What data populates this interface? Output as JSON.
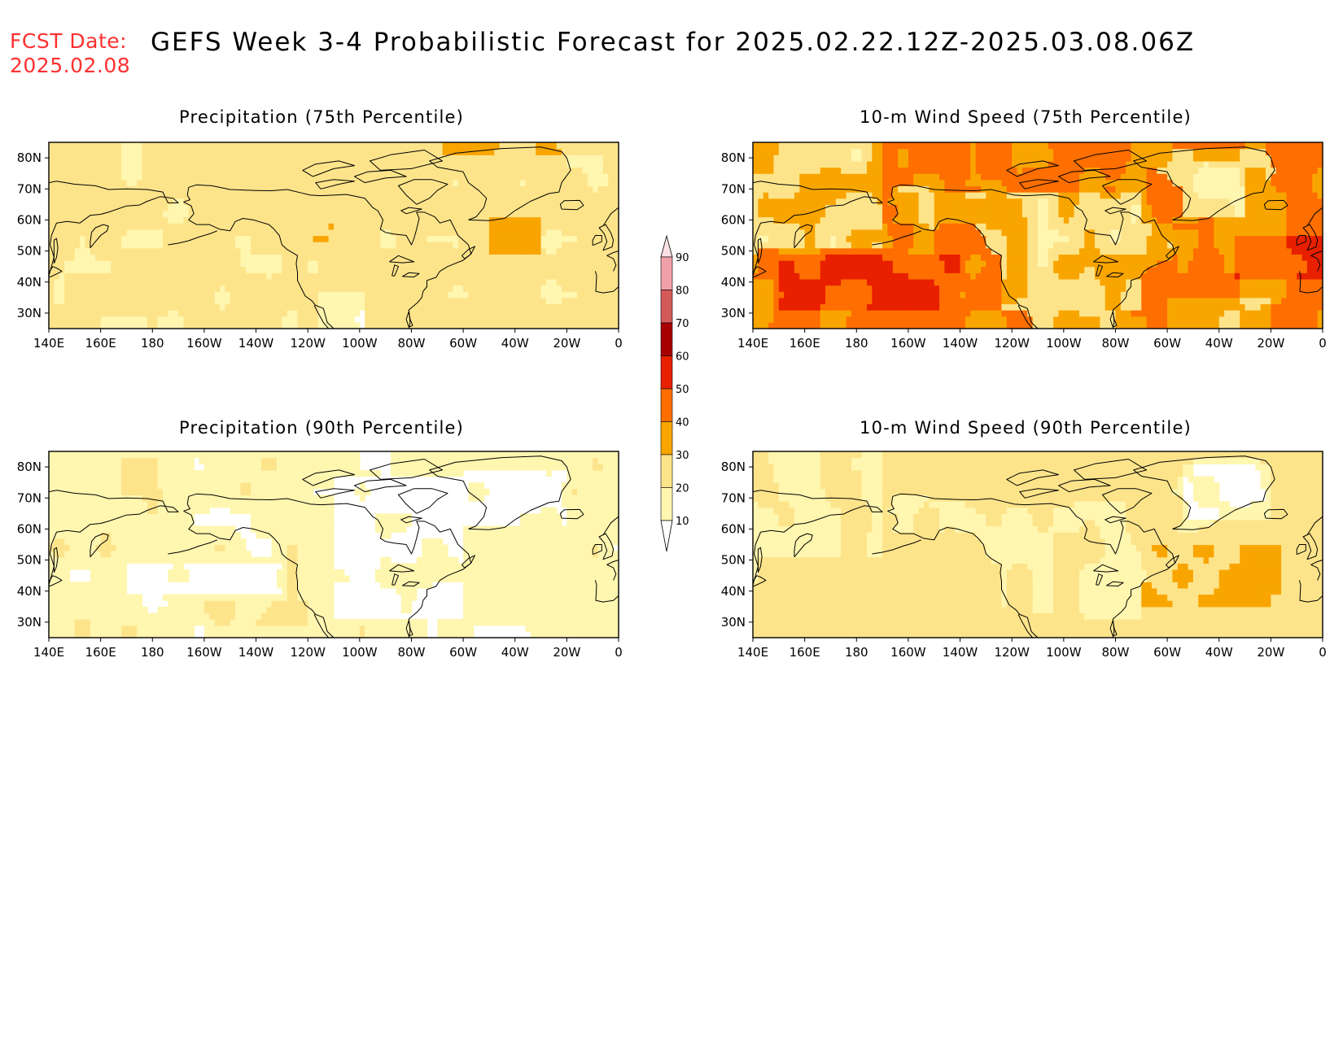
{
  "header": {
    "fcst_label": "FCST Date:",
    "fcst_date": "2025.02.08",
    "title": "GEFS Week 3-4 Probabilistic Forecast for 2025.02.22.12Z-2025.03.08.06Z"
  },
  "x_ticks": [
    "140E",
    "160E",
    "180",
    "160W",
    "140W",
    "120W",
    "100W",
    "80W",
    "60W",
    "40W",
    "20W",
    "0"
  ],
  "y_ticks": [
    "80N",
    "70N",
    "60N",
    "50N",
    "40N",
    "30N"
  ],
  "colorbar": {
    "levels": [
      "10",
      "20",
      "30",
      "40",
      "50",
      "60",
      "70",
      "80",
      "90"
    ],
    "colors": [
      "#ffffff",
      "#fff6b0",
      "#fde48a",
      "#f9a500",
      "#ff6e00",
      "#e82000",
      "#a80000",
      "#d45a5a",
      "#f0a0a8",
      "#fde0e4"
    ]
  },
  "panels": [
    {
      "title": "Precipitation (75th Percentile)",
      "field": "precip75"
    },
    {
      "title": "10-m Wind Speed (75th Percentile)",
      "field": "wind75"
    },
    {
      "title": "Precipitation (90th Percentile)",
      "field": "precip90"
    },
    {
      "title": "10-m Wind Speed (90th Percentile)",
      "field": "wind90"
    }
  ]
}
